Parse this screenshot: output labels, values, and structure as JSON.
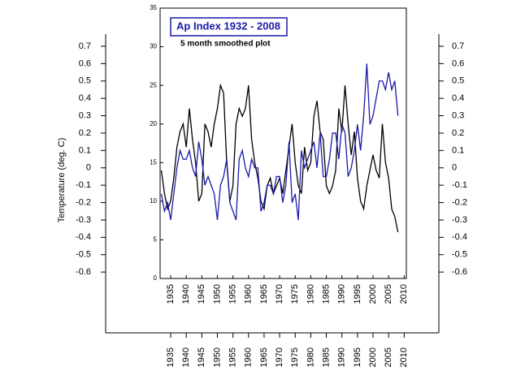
{
  "chart_data": {
    "type": "line",
    "title": "Ap Index 1932 - 2008",
    "subtitle": "5 month smoothed plot",
    "y2label": "Temperature (deg. C)",
    "x": [
      1932,
      1933,
      1934,
      1935,
      1936,
      1937,
      1938,
      1939,
      1940,
      1941,
      1942,
      1943,
      1944,
      1945,
      1946,
      1947,
      1948,
      1949,
      1950,
      1951,
      1952,
      1953,
      1954,
      1955,
      1956,
      1957,
      1958,
      1959,
      1960,
      1961,
      1962,
      1963,
      1964,
      1965,
      1966,
      1967,
      1968,
      1969,
      1970,
      1971,
      1972,
      1973,
      1974,
      1975,
      1976,
      1977,
      1978,
      1979,
      1980,
      1981,
      1982,
      1983,
      1984,
      1985,
      1986,
      1987,
      1988,
      1989,
      1990,
      1991,
      1992,
      1993,
      1994,
      1995,
      1996,
      1997,
      1998,
      1999,
      2000,
      2001,
      2002,
      2003,
      2004,
      2005,
      2006,
      2007,
      2008
    ],
    "series": [
      {
        "color": "#000000",
        "values": [
          14,
          11,
          9,
          10,
          13,
          17,
          19,
          20,
          17,
          22,
          18,
          15,
          10,
          11,
          20,
          19,
          17,
          20,
          22,
          25,
          24,
          15,
          10,
          12,
          20,
          22,
          21,
          22,
          25,
          18,
          15,
          13,
          10,
          9,
          12,
          13,
          11,
          12,
          13,
          11,
          14,
          17,
          20,
          15,
          12,
          11,
          17,
          14,
          15,
          21,
          23,
          19,
          18,
          12,
          11,
          12,
          14,
          22,
          19,
          25,
          20,
          16,
          19,
          13,
          10,
          9,
          12,
          14,
          16,
          14,
          13,
          20,
          15,
          13,
          9,
          8,
          6
        ]
      },
      {
        "color": "#1a1aa8",
        "axis": "y2",
        "values": [
          -0.15,
          -0.25,
          -0.2,
          -0.3,
          -0.15,
          0.0,
          0.1,
          0.05,
          0.05,
          0.1,
          0.0,
          -0.05,
          0.15,
          0.05,
          -0.1,
          -0.05,
          -0.1,
          -0.15,
          -0.3,
          -0.1,
          -0.05,
          0.05,
          -0.2,
          -0.25,
          -0.3,
          0.05,
          0.1,
          0.0,
          -0.05,
          0.05,
          0.0,
          0.0,
          -0.25,
          -0.2,
          -0.1,
          -0.1,
          -0.15,
          -0.05,
          -0.05,
          -0.2,
          -0.1,
          0.15,
          -0.2,
          -0.15,
          -0.3,
          0.1,
          0.0,
          0.05,
          0.1,
          0.15,
          0.0,
          0.2,
          -0.05,
          -0.05,
          0.05,
          0.2,
          0.2,
          0.05,
          0.25,
          0.2,
          -0.05,
          0.0,
          0.1,
          0.25,
          0.1,
          0.3,
          0.6,
          0.25,
          0.3,
          0.4,
          0.5,
          0.5,
          0.45,
          0.55,
          0.45,
          0.5,
          0.3
        ]
      }
    ],
    "xlim": [
      1931.6,
      2010.7
    ],
    "xticks": [
      1935,
      1940,
      1945,
      1950,
      1955,
      1960,
      1965,
      1970,
      1975,
      1980,
      1985,
      1990,
      1995,
      2000,
      2005,
      2010
    ],
    "ylim": [
      0,
      35
    ],
    "yticks": [
      0,
      5,
      10,
      15,
      20,
      25,
      30,
      35
    ],
    "y2lim": [
      -0.95,
      0.77
    ],
    "y2ticks": [
      -0.6,
      -0.5,
      -0.4,
      -0.3,
      -0.2,
      -0.1,
      0,
      0.1,
      0.2,
      0.3,
      0.4,
      0.5,
      0.6,
      0.7
    ]
  }
}
